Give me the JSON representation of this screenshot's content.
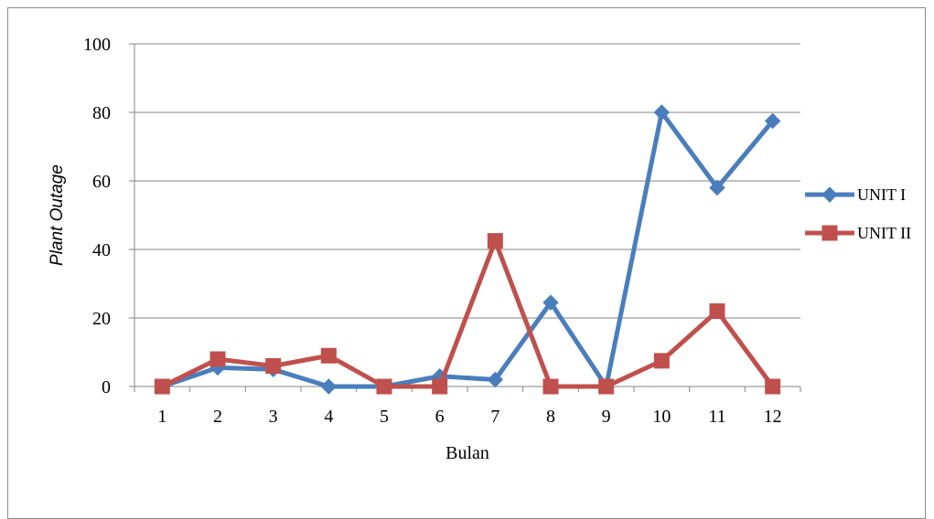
{
  "chart_data": {
    "type": "line",
    "categories": [
      "1",
      "2",
      "3",
      "4",
      "5",
      "6",
      "7",
      "8",
      "9",
      "10",
      "11",
      "12"
    ],
    "series": [
      {
        "name": "UNIT I",
        "color": "#4a7ebb",
        "marker": "diamond",
        "values": [
          0,
          5.5,
          5,
          0,
          0,
          3,
          2,
          24.5,
          0,
          80,
          58,
          77.5
        ]
      },
      {
        "name": "UNIT II",
        "color": "#c0504d",
        "marker": "square",
        "values": [
          0,
          8,
          6,
          9,
          0,
          0,
          42.5,
          0,
          0,
          7.5,
          22,
          0
        ]
      }
    ],
    "xlabel": "Bulan",
    "ylabel": "Plant Outage",
    "ylim": [
      0,
      100
    ],
    "yticks": [
      0,
      20,
      40,
      60,
      80,
      100
    ],
    "grid": "horizontal",
    "legend_position": "right"
  }
}
